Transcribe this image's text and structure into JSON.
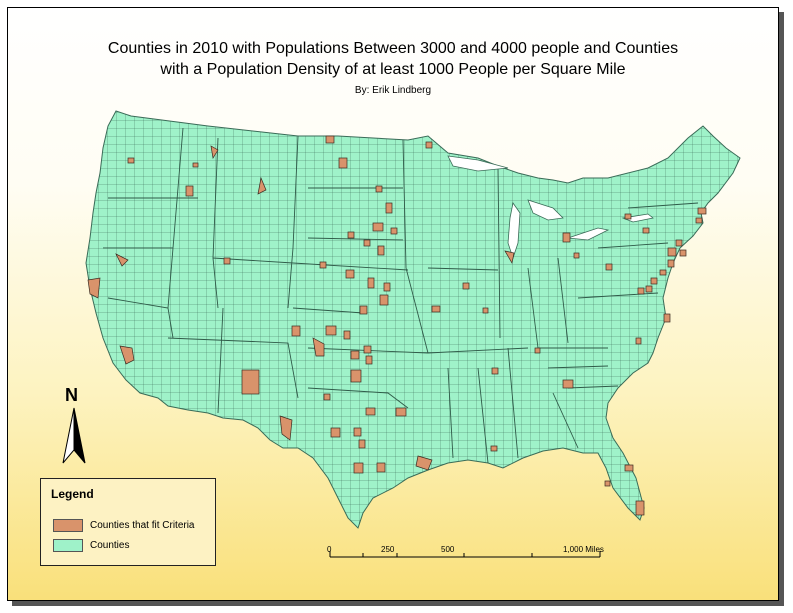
{
  "map": {
    "title_line1": "Counties in 2010 with Populations Between 3000 and 4000 people and Counties",
    "title_line2": "with a Population Density of at least 1000 People per Square Mile",
    "author": "By: Erik Lindberg"
  },
  "colors": {
    "criteria_fill": "#d9936b",
    "county_fill": "#9ff2c9",
    "county_stroke": "#3a6b57",
    "page_bg_top": "#ffffff",
    "page_bg_bottom": "#f9e07a"
  },
  "legend": {
    "title": "Legend",
    "items": [
      {
        "label": "Counties that fit Criteria",
        "color": "#d9936b"
      },
      {
        "label": "Counties",
        "color": "#9ff2c9"
      }
    ]
  },
  "north_arrow": {
    "label": "N"
  },
  "scale_bar": {
    "labels": [
      "0",
      "250",
      "500",
      "1,000 Miles"
    ]
  }
}
